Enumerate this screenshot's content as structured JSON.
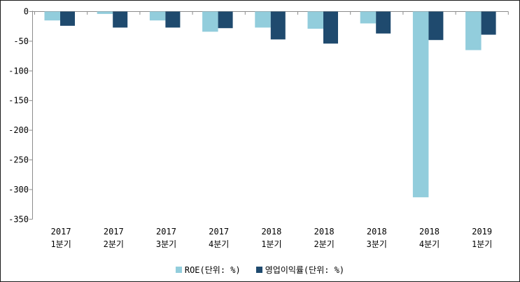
{
  "chart_data": {
    "type": "bar",
    "title": "",
    "categories": [
      {
        "line1": "2017",
        "line2": "1분기"
      },
      {
        "line1": "2017",
        "line2": "2분기"
      },
      {
        "line1": "2017",
        "line2": "3분기"
      },
      {
        "line1": "2017",
        "line2": "4분기"
      },
      {
        "line1": "2018",
        "line2": "1분기"
      },
      {
        "line1": "2018",
        "line2": "2분기"
      },
      {
        "line1": "2018",
        "line2": "3분기"
      },
      {
        "line1": "2018",
        "line2": "4분기"
      },
      {
        "line1": "2019",
        "line2": "1분기"
      }
    ],
    "series": [
      {
        "name": "ROE(단위: %)",
        "color": "#92CDDC",
        "values": [
          -15,
          -4,
          -15,
          -34,
          -27,
          -29,
          -20,
          -313,
          -65
        ]
      },
      {
        "name": "영업이익률(단위: %)",
        "color": "#1F4A6E",
        "values": [
          -24,
          -27,
          -27,
          -28,
          -47,
          -54,
          -37,
          -48,
          -39
        ]
      }
    ],
    "y_axis": {
      "ticks": [
        0,
        -50,
        -100,
        -150,
        -200,
        -250,
        -300,
        -350
      ],
      "min": -350,
      "max": 0,
      "grid": false
    },
    "legend_position": "bottom"
  },
  "colors": {
    "axis": "#8C8C8C",
    "text": "#000000",
    "background": "#FFFFFF",
    "border": "#1A1A1A",
    "series_light": "#92CDDC",
    "series_dark": "#1F4A6E"
  }
}
